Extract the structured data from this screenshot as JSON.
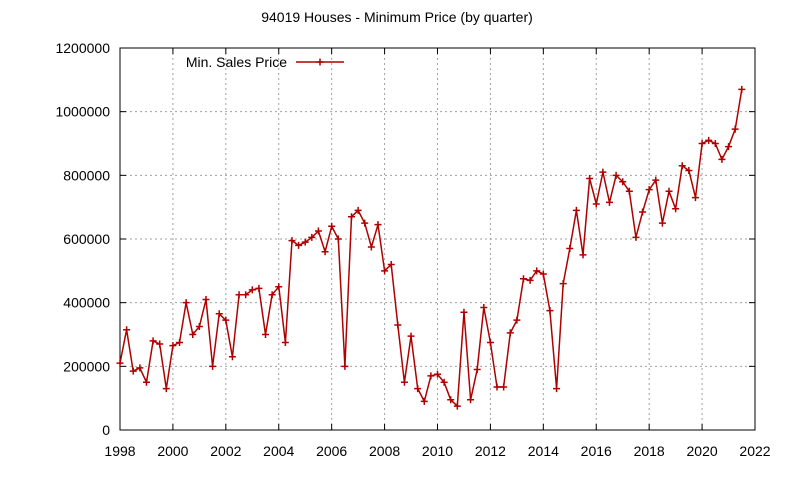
{
  "chart_data": {
    "type": "line",
    "title": "94019 Houses - Minimum Price (by quarter)",
    "xlabel": "",
    "ylabel": "",
    "xlim": [
      1998,
      2022
    ],
    "ylim": [
      0,
      1200000
    ],
    "x_ticks": [
      1998,
      2000,
      2002,
      2004,
      2006,
      2008,
      2010,
      2012,
      2014,
      2016,
      2018,
      2020,
      2022
    ],
    "y_ticks": [
      0,
      200000,
      400000,
      600000,
      800000,
      1000000,
      1200000
    ],
    "x_tick_labels": [
      "1998",
      "2000",
      "2002",
      "2004",
      "2006",
      "2008",
      "2010",
      "2012",
      "2014",
      "2016",
      "2018",
      "2020",
      "2022"
    ],
    "y_tick_labels": [
      "0",
      "200000",
      "400000",
      "600000",
      "800000",
      "1000000",
      "1200000"
    ],
    "grid": true,
    "legend_position": "top-left",
    "series": [
      {
        "name": "Min. Sales Price",
        "color": "#b00000",
        "marker": "plus",
        "x": [
          1998.0,
          1998.25,
          1998.5,
          1998.75,
          1999.0,
          1999.25,
          1999.5,
          1999.75,
          2000.0,
          2000.25,
          2000.5,
          2000.75,
          2001.0,
          2001.25,
          2001.5,
          2001.75,
          2002.0,
          2002.25,
          2002.5,
          2002.75,
          2003.0,
          2003.25,
          2003.5,
          2003.75,
          2004.0,
          2004.25,
          2004.5,
          2004.75,
          2005.0,
          2005.25,
          2005.5,
          2005.75,
          2006.0,
          2006.25,
          2006.5,
          2006.75,
          2007.0,
          2007.25,
          2007.5,
          2007.75,
          2008.0,
          2008.25,
          2008.5,
          2008.75,
          2009.0,
          2009.25,
          2009.5,
          2009.75,
          2010.0,
          2010.25,
          2010.5,
          2010.75,
          2011.0,
          2011.25,
          2011.5,
          2011.75,
          2012.0,
          2012.25,
          2012.5,
          2012.75,
          2013.0,
          2013.25,
          2013.5,
          2013.75,
          2014.0,
          2014.25,
          2014.5,
          2014.75,
          2015.0,
          2015.25,
          2015.5,
          2015.75,
          2016.0,
          2016.25,
          2016.5,
          2016.75,
          2017.0,
          2017.25,
          2017.5,
          2017.75,
          2018.0,
          2018.25,
          2018.5,
          2018.75,
          2019.0,
          2019.25,
          2019.5,
          2019.75,
          2020.0,
          2020.25,
          2020.5,
          2020.75,
          2021.0,
          2021.25,
          2021.5
        ],
        "values": [
          210000,
          315000,
          185000,
          195000,
          150000,
          280000,
          270000,
          130000,
          265000,
          275000,
          400000,
          300000,
          325000,
          410000,
          200000,
          365000,
          345000,
          230000,
          425000,
          425000,
          440000,
          445000,
          300000,
          425000,
          450000,
          275000,
          595000,
          580000,
          590000,
          605000,
          625000,
          560000,
          640000,
          600000,
          200000,
          670000,
          690000,
          650000,
          575000,
          645000,
          500000,
          520000,
          330000,
          150000,
          295000,
          130000,
          90000,
          170000,
          175000,
          150000,
          95000,
          75000,
          370000,
          95000,
          190000,
          385000,
          275000,
          135000,
          135000,
          305000,
          345000,
          475000,
          470000,
          500000,
          490000,
          375000,
          130000,
          460000,
          570000,
          690000,
          550000,
          790000,
          710000,
          810000,
          715000,
          800000,
          780000,
          750000,
          605000,
          685000,
          755000,
          785000,
          650000,
          750000,
          695000,
          830000,
          815000,
          730000,
          900000,
          910000,
          900000,
          850000,
          890000,
          945000,
          1070000
        ]
      }
    ]
  }
}
